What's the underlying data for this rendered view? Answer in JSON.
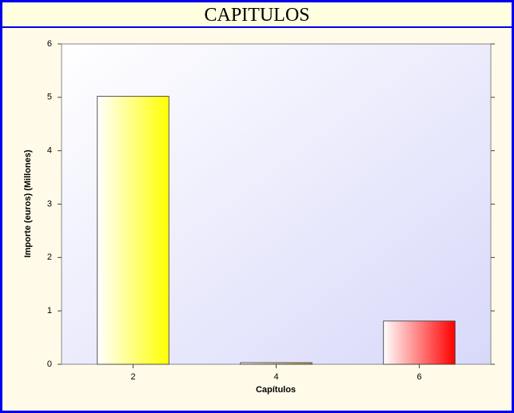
{
  "chart_data": {
    "type": "bar",
    "title": "CAPITULOS",
    "x_label": "Capítulos",
    "y_label": "Importe (euros) (Millones)",
    "categories": [
      "2",
      "4",
      "6"
    ],
    "values": [
      5.02,
      0.03,
      0.81
    ],
    "colors": [
      "#ffff00",
      "#c8a040",
      "#ff0000"
    ],
    "ylim": [
      0,
      6
    ],
    "yticks": [
      0,
      1,
      2,
      3,
      4,
      5,
      6
    ],
    "grid": false
  }
}
